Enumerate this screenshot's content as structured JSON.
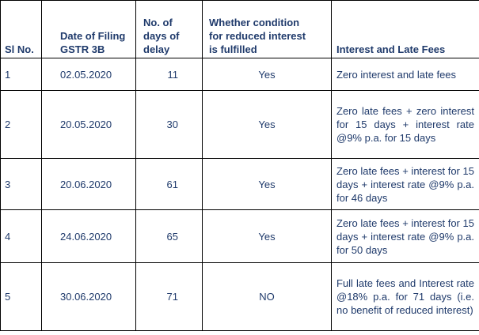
{
  "headers": {
    "sl_no": "Sl No.",
    "date_line1": "Date of Filing",
    "date_line2": "GSTR 3B",
    "days_line1": "No. of",
    "days_line2": "days of",
    "days_line3": "delay",
    "cond_line1": "Whether condition",
    "cond_line2": "for reduced interest",
    "cond_line3": "is fulfilled",
    "fees": "Interest and Late Fees"
  },
  "rows": [
    {
      "sl": "1",
      "date": "02.05.2020",
      "days": "11",
      "condition": "Yes",
      "fees": "Zero interest and late fees"
    },
    {
      "sl": "2",
      "date": "20.05.2020",
      "days": "30",
      "condition": "Yes",
      "fees": "Zero late fees + zero interest for 15 days + interest rate @9% p.a. for 15 days"
    },
    {
      "sl": "3",
      "date": "20.06.2020",
      "days": "61",
      "condition": "Yes",
      "fees": "Zero late fees + interest for 15 days + interest rate @9% p.a. for 46 days"
    },
    {
      "sl": "4",
      "date": "24.06.2020",
      "days": "65",
      "condition": "Yes",
      "fees": "Zero late fees + interest for 15 days + interest rate @9% p.a. for 50 days"
    },
    {
      "sl": "5",
      "date": "30.06.2020",
      "days": "71",
      "condition": "NO",
      "fees": "Full late fees and Interest rate @18% p.a. for 71 days (i.e. no benefit of reduced interest)"
    }
  ]
}
